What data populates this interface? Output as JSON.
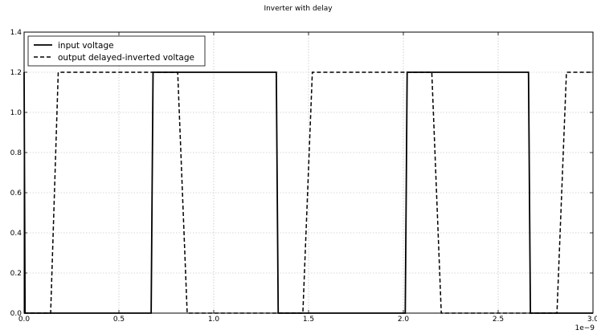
{
  "chart_data": {
    "type": "line",
    "title": "Inverter with delay",
    "xlabel": "",
    "ylabel": "",
    "x_exponent_label": "1e−9",
    "xlim": [
      0,
      3.0
    ],
    "ylim": [
      0,
      1.4
    ],
    "x_ticks": [
      0.0,
      0.5,
      1.0,
      1.5,
      2.0,
      2.5,
      3.0
    ],
    "x_tick_labels": [
      "0.0",
      "0.5",
      "1.0",
      "1.5",
      "2.0",
      "2.5",
      "3.0"
    ],
    "y_ticks": [
      0.0,
      0.2,
      0.4,
      0.6,
      0.8,
      1.0,
      1.2,
      1.4
    ],
    "y_tick_labels": [
      "0.0",
      "0.2",
      "0.4",
      "0.6",
      "0.8",
      "1.0",
      "1.2",
      "1.4"
    ],
    "grid": true,
    "legend_position": "top-left",
    "series": [
      {
        "name": "input voltage",
        "style": "solid",
        "color": "#000000",
        "x": [
          0.0,
          0.005,
          0.01,
          0.67,
          0.68,
          1.33,
          1.34,
          2.01,
          2.02,
          2.66,
          2.67,
          3.0
        ],
        "y": [
          1.2,
          0.0,
          0.0,
          0.0,
          1.2,
          1.2,
          0.0,
          0.0,
          1.2,
          1.2,
          0.0,
          0.0
        ]
      },
      {
        "name": "output delayed-inverted voltage",
        "style": "dashed",
        "color": "#000000",
        "x": [
          0.0,
          0.14,
          0.18,
          0.81,
          0.86,
          1.47,
          1.52,
          2.15,
          2.2,
          2.81,
          2.86,
          3.0
        ],
        "y": [
          0.0,
          0.0,
          1.2,
          1.2,
          0.0,
          0.0,
          1.2,
          1.2,
          0.0,
          0.0,
          1.2,
          1.2
        ]
      }
    ]
  }
}
